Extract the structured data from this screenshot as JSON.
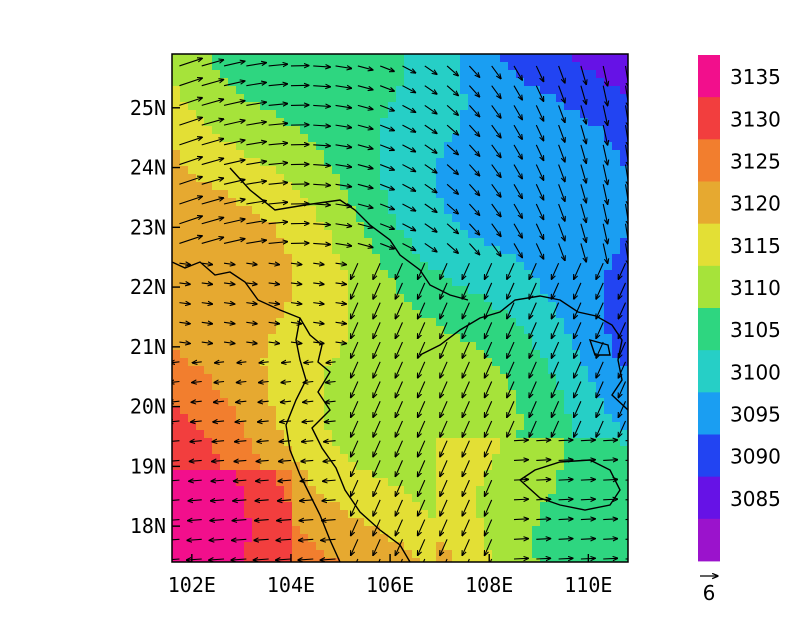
{
  "chart_data": {
    "type": "heatmap",
    "title": "",
    "xlabel": "",
    "ylabel": "",
    "x_range": [
      101.6,
      110.8
    ],
    "y_range": [
      17.4,
      25.9
    ],
    "x_ticks": [
      "102E",
      "104E",
      "106E",
      "108E",
      "110E"
    ],
    "y_ticks": [
      "25N",
      "24N",
      "23N",
      "22N",
      "21N",
      "20N",
      "19N",
      "18N"
    ],
    "colorbar": {
      "labels": [
        "3135",
        "3130",
        "3125",
        "3120",
        "3115",
        "3110",
        "3105",
        "3100",
        "3095",
        "3090",
        "3085"
      ],
      "colors": [
        "#f20f8c",
        "#f23e3e",
        "#f27e2e",
        "#e6a930",
        "#e3df35",
        "#a6e33a",
        "#2ed680",
        "#26cfc6",
        "#1a9ef2",
        "#2244f2",
        "#6612e6",
        "#9b13cc"
      ]
    },
    "vector_reference": "6",
    "field": "shaded scalar (range 3085–3135) with wind vectors; high values (red/orange) southwest, low values (blue/purple) northeast; southwesterly flow north, northeasterly flow south-east"
  }
}
